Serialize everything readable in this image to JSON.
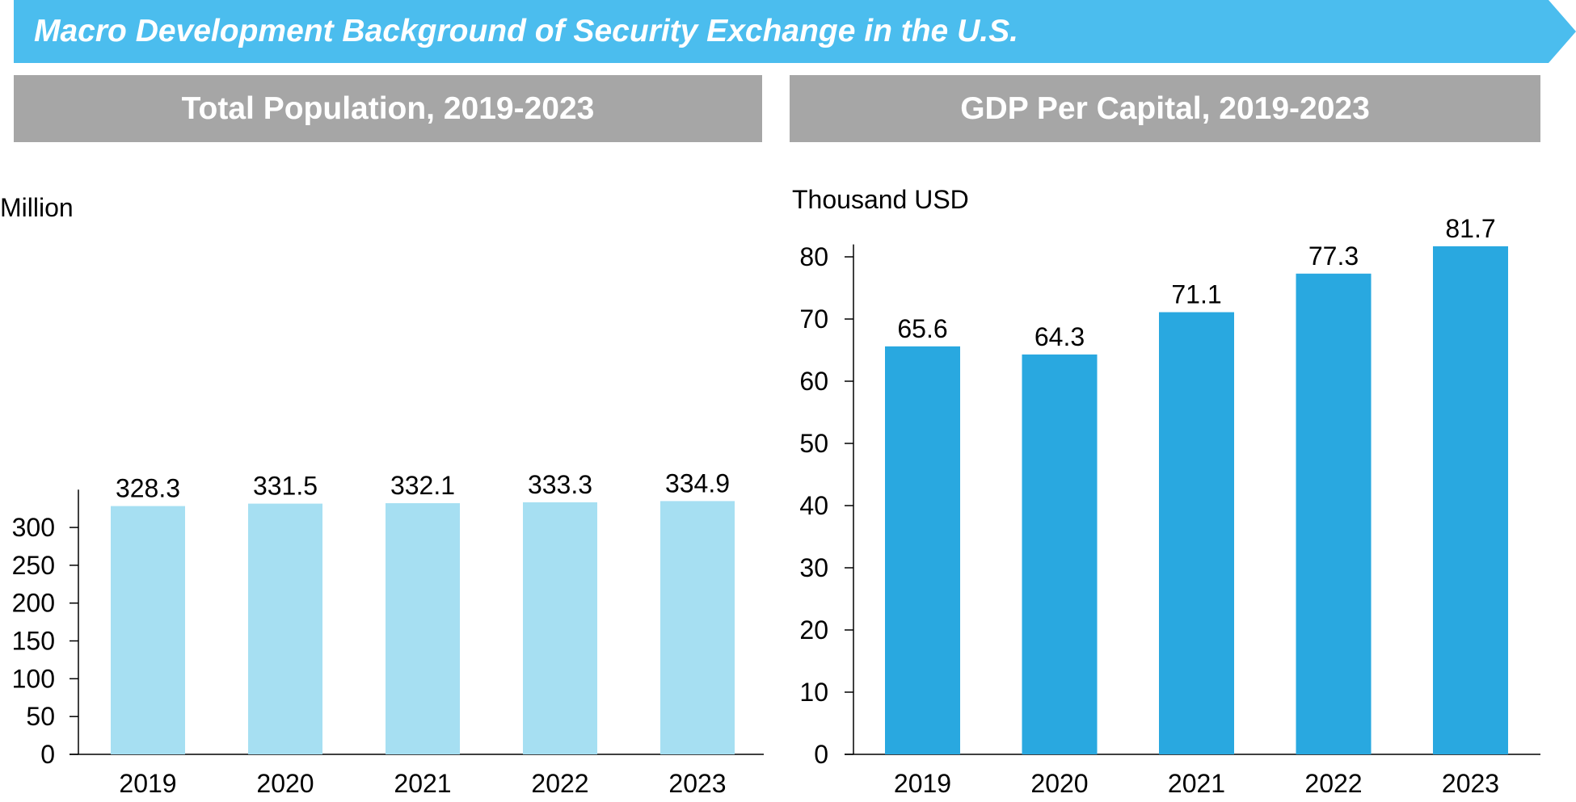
{
  "banner": {
    "title": "Macro Development Background of Security Exchange in the U.S.",
    "color": "#4bbdee"
  },
  "chart_data": [
    {
      "type": "bar",
      "title": "Total Population, 2019-2023",
      "unit": "Million",
      "categories": [
        "2019",
        "2020",
        "2021",
        "2022",
        "2023"
      ],
      "values": [
        328.3,
        331.5,
        332.1,
        333.3,
        334.9
      ],
      "value_labels": [
        "328.3",
        "331.5",
        "332.1",
        "333.3",
        "334.9"
      ],
      "ylim": [
        0,
        350
      ],
      "yticks": [
        0,
        50,
        100,
        150,
        200,
        250,
        300
      ],
      "bar_color": "#a6dff2",
      "grid": false,
      "legend": "none"
    },
    {
      "type": "bar",
      "title": "GDP Per Capital, 2019-2023",
      "unit": "Thousand USD",
      "categories": [
        "2019",
        "2020",
        "2021",
        "2022",
        "2023"
      ],
      "values": [
        65.6,
        64.3,
        71.1,
        77.3,
        81.7
      ],
      "value_labels": [
        "65.6",
        "64.3",
        "71.1",
        "77.3",
        "81.7"
      ],
      "ylim": [
        0,
        82
      ],
      "yticks": [
        0,
        10,
        20,
        30,
        40,
        50,
        60,
        70,
        80
      ],
      "bar_color": "#29a8e0",
      "grid": false,
      "legend": "none"
    }
  ]
}
